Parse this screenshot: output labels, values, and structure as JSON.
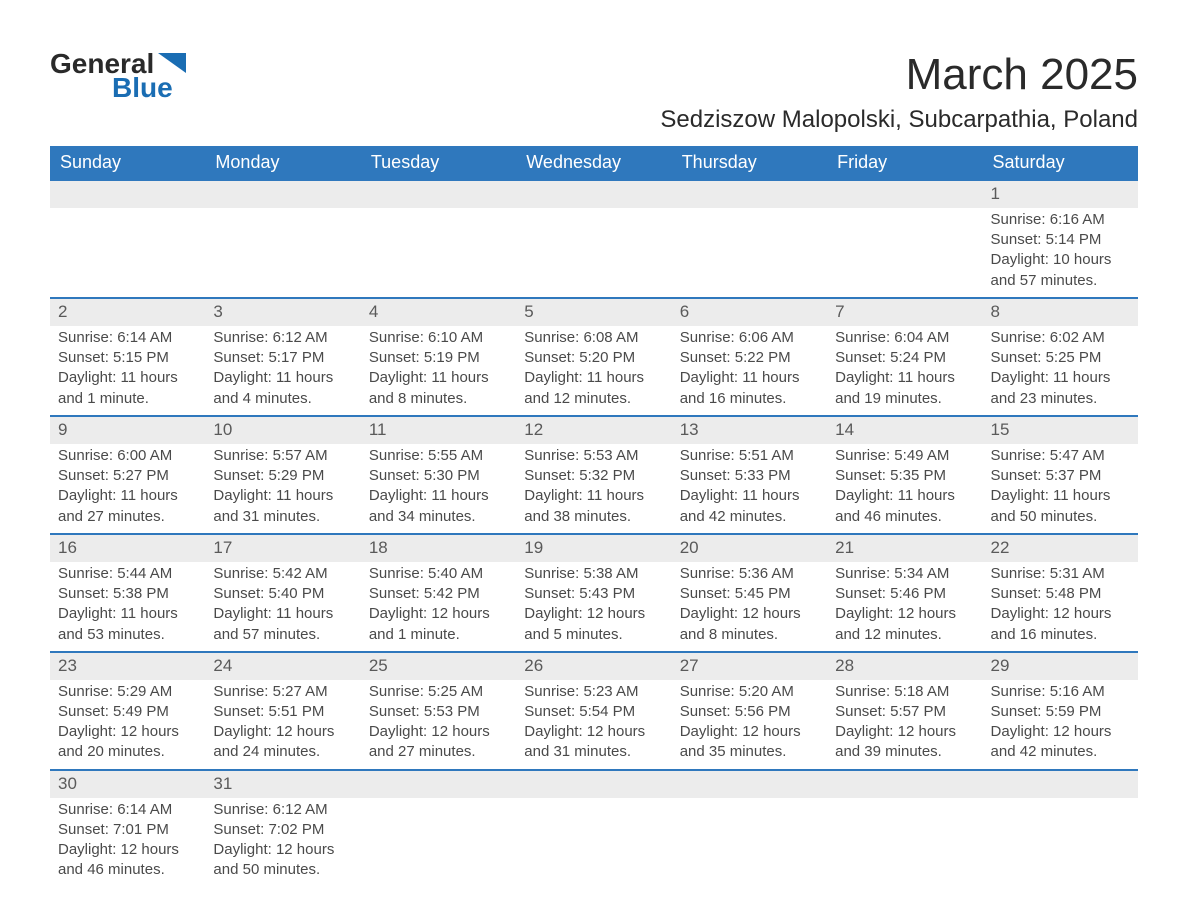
{
  "logo": {
    "text_main": "General",
    "text_sub": "Blue"
  },
  "title": "March 2025",
  "location": "Sedziszow Malopolski, Subcarpathia, Poland",
  "colors": {
    "header_bg": "#2f78bd",
    "header_text": "#ffffff",
    "daynum_bg": "#ececec",
    "row_border": "#2f78bd",
    "body_text": "#4a4a4a",
    "page_bg": "#ffffff",
    "logo_blue": "#1a6db3"
  },
  "typography": {
    "title_fontsize_pt": 33,
    "location_fontsize_pt": 18,
    "header_fontsize_pt": 14,
    "cell_fontsize_pt": 11
  },
  "day_headers": [
    "Sunday",
    "Monday",
    "Tuesday",
    "Wednesday",
    "Thursday",
    "Friday",
    "Saturday"
  ],
  "weeks": [
    [
      null,
      null,
      null,
      null,
      null,
      null,
      {
        "d": "1",
        "sr": "Sunrise: 6:16 AM",
        "ss": "Sunset: 5:14 PM",
        "dl1": "Daylight: 10 hours",
        "dl2": "and 57 minutes."
      }
    ],
    [
      {
        "d": "2",
        "sr": "Sunrise: 6:14 AM",
        "ss": "Sunset: 5:15 PM",
        "dl1": "Daylight: 11 hours",
        "dl2": "and 1 minute."
      },
      {
        "d": "3",
        "sr": "Sunrise: 6:12 AM",
        "ss": "Sunset: 5:17 PM",
        "dl1": "Daylight: 11 hours",
        "dl2": "and 4 minutes."
      },
      {
        "d": "4",
        "sr": "Sunrise: 6:10 AM",
        "ss": "Sunset: 5:19 PM",
        "dl1": "Daylight: 11 hours",
        "dl2": "and 8 minutes."
      },
      {
        "d": "5",
        "sr": "Sunrise: 6:08 AM",
        "ss": "Sunset: 5:20 PM",
        "dl1": "Daylight: 11 hours",
        "dl2": "and 12 minutes."
      },
      {
        "d": "6",
        "sr": "Sunrise: 6:06 AM",
        "ss": "Sunset: 5:22 PM",
        "dl1": "Daylight: 11 hours",
        "dl2": "and 16 minutes."
      },
      {
        "d": "7",
        "sr": "Sunrise: 6:04 AM",
        "ss": "Sunset: 5:24 PM",
        "dl1": "Daylight: 11 hours",
        "dl2": "and 19 minutes."
      },
      {
        "d": "8",
        "sr": "Sunrise: 6:02 AM",
        "ss": "Sunset: 5:25 PM",
        "dl1": "Daylight: 11 hours",
        "dl2": "and 23 minutes."
      }
    ],
    [
      {
        "d": "9",
        "sr": "Sunrise: 6:00 AM",
        "ss": "Sunset: 5:27 PM",
        "dl1": "Daylight: 11 hours",
        "dl2": "and 27 minutes."
      },
      {
        "d": "10",
        "sr": "Sunrise: 5:57 AM",
        "ss": "Sunset: 5:29 PM",
        "dl1": "Daylight: 11 hours",
        "dl2": "and 31 minutes."
      },
      {
        "d": "11",
        "sr": "Sunrise: 5:55 AM",
        "ss": "Sunset: 5:30 PM",
        "dl1": "Daylight: 11 hours",
        "dl2": "and 34 minutes."
      },
      {
        "d": "12",
        "sr": "Sunrise: 5:53 AM",
        "ss": "Sunset: 5:32 PM",
        "dl1": "Daylight: 11 hours",
        "dl2": "and 38 minutes."
      },
      {
        "d": "13",
        "sr": "Sunrise: 5:51 AM",
        "ss": "Sunset: 5:33 PM",
        "dl1": "Daylight: 11 hours",
        "dl2": "and 42 minutes."
      },
      {
        "d": "14",
        "sr": "Sunrise: 5:49 AM",
        "ss": "Sunset: 5:35 PM",
        "dl1": "Daylight: 11 hours",
        "dl2": "and 46 minutes."
      },
      {
        "d": "15",
        "sr": "Sunrise: 5:47 AM",
        "ss": "Sunset: 5:37 PM",
        "dl1": "Daylight: 11 hours",
        "dl2": "and 50 minutes."
      }
    ],
    [
      {
        "d": "16",
        "sr": "Sunrise: 5:44 AM",
        "ss": "Sunset: 5:38 PM",
        "dl1": "Daylight: 11 hours",
        "dl2": "and 53 minutes."
      },
      {
        "d": "17",
        "sr": "Sunrise: 5:42 AM",
        "ss": "Sunset: 5:40 PM",
        "dl1": "Daylight: 11 hours",
        "dl2": "and 57 minutes."
      },
      {
        "d": "18",
        "sr": "Sunrise: 5:40 AM",
        "ss": "Sunset: 5:42 PM",
        "dl1": "Daylight: 12 hours",
        "dl2": "and 1 minute."
      },
      {
        "d": "19",
        "sr": "Sunrise: 5:38 AM",
        "ss": "Sunset: 5:43 PM",
        "dl1": "Daylight: 12 hours",
        "dl2": "and 5 minutes."
      },
      {
        "d": "20",
        "sr": "Sunrise: 5:36 AM",
        "ss": "Sunset: 5:45 PM",
        "dl1": "Daylight: 12 hours",
        "dl2": "and 8 minutes."
      },
      {
        "d": "21",
        "sr": "Sunrise: 5:34 AM",
        "ss": "Sunset: 5:46 PM",
        "dl1": "Daylight: 12 hours",
        "dl2": "and 12 minutes."
      },
      {
        "d": "22",
        "sr": "Sunrise: 5:31 AM",
        "ss": "Sunset: 5:48 PM",
        "dl1": "Daylight: 12 hours",
        "dl2": "and 16 minutes."
      }
    ],
    [
      {
        "d": "23",
        "sr": "Sunrise: 5:29 AM",
        "ss": "Sunset: 5:49 PM",
        "dl1": "Daylight: 12 hours",
        "dl2": "and 20 minutes."
      },
      {
        "d": "24",
        "sr": "Sunrise: 5:27 AM",
        "ss": "Sunset: 5:51 PM",
        "dl1": "Daylight: 12 hours",
        "dl2": "and 24 minutes."
      },
      {
        "d": "25",
        "sr": "Sunrise: 5:25 AM",
        "ss": "Sunset: 5:53 PM",
        "dl1": "Daylight: 12 hours",
        "dl2": "and 27 minutes."
      },
      {
        "d": "26",
        "sr": "Sunrise: 5:23 AM",
        "ss": "Sunset: 5:54 PM",
        "dl1": "Daylight: 12 hours",
        "dl2": "and 31 minutes."
      },
      {
        "d": "27",
        "sr": "Sunrise: 5:20 AM",
        "ss": "Sunset: 5:56 PM",
        "dl1": "Daylight: 12 hours",
        "dl2": "and 35 minutes."
      },
      {
        "d": "28",
        "sr": "Sunrise: 5:18 AM",
        "ss": "Sunset: 5:57 PM",
        "dl1": "Daylight: 12 hours",
        "dl2": "and 39 minutes."
      },
      {
        "d": "29",
        "sr": "Sunrise: 5:16 AM",
        "ss": "Sunset: 5:59 PM",
        "dl1": "Daylight: 12 hours",
        "dl2": "and 42 minutes."
      }
    ],
    [
      {
        "d": "30",
        "sr": "Sunrise: 6:14 AM",
        "ss": "Sunset: 7:01 PM",
        "dl1": "Daylight: 12 hours",
        "dl2": "and 46 minutes."
      },
      {
        "d": "31",
        "sr": "Sunrise: 6:12 AM",
        "ss": "Sunset: 7:02 PM",
        "dl1": "Daylight: 12 hours",
        "dl2": "and 50 minutes."
      },
      null,
      null,
      null,
      null,
      null
    ]
  ]
}
